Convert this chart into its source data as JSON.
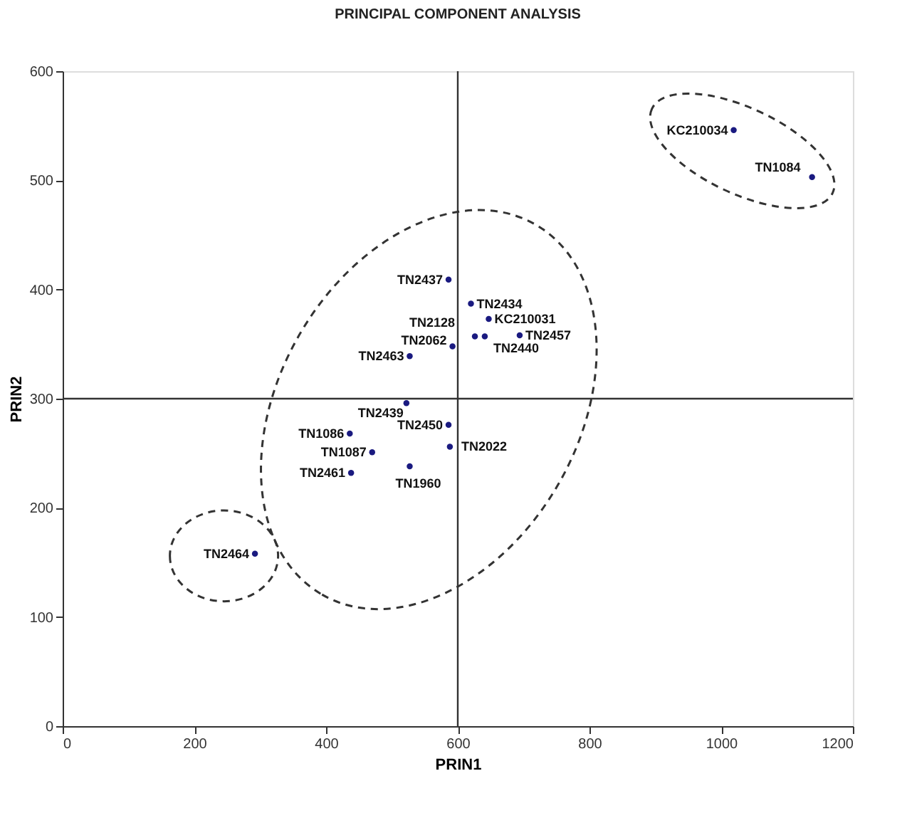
{
  "chart_data": {
    "type": "scatter",
    "title": "PRINCIPAL COMPONENT ANALYSIS",
    "xlabel": "PRIN1",
    "ylabel": "PRIN2",
    "series": [
      {
        "color": "#1a1a80",
        "x": [
          586,
          620,
          647,
          626,
          641,
          694,
          592,
          527,
          522,
          586,
          436,
          588,
          470,
          527,
          438,
          292,
          1019,
          1138
        ],
        "values": [
          409,
          387,
          373,
          357,
          357,
          358,
          348,
          339,
          296,
          276,
          268,
          256,
          251,
          238,
          232,
          158,
          546,
          503
        ]
      }
    ],
    "annotations": [
      {
        "text": "TN2437",
        "x": 586,
        "y": 409
      },
      {
        "text": "TN2434",
        "x": 620,
        "y": 387
      },
      {
        "text": "KC210031",
        "x": 647,
        "y": 373
      },
      {
        "text": "TN2128",
        "x": 626,
        "y": 357
      },
      {
        "text": "TN2440",
        "x": 641,
        "y": 357
      },
      {
        "text": "TN2457",
        "x": 694,
        "y": 358
      },
      {
        "text": "TN2062",
        "x": 592,
        "y": 348
      },
      {
        "text": "TN2463",
        "x": 527,
        "y": 339
      },
      {
        "text": "TN2439",
        "x": 522,
        "y": 296
      },
      {
        "text": "TN2450",
        "x": 586,
        "y": 276
      },
      {
        "text": "TN1086",
        "x": 436,
        "y": 268
      },
      {
        "text": "TN2022",
        "x": 588,
        "y": 256
      },
      {
        "text": "TN1087",
        "x": 470,
        "y": 251
      },
      {
        "text": "TN1960",
        "x": 527,
        "y": 238
      },
      {
        "text": "TN2461",
        "x": 438,
        "y": 232
      },
      {
        "text": "TN2464",
        "x": 292,
        "y": 158
      },
      {
        "text": "KC210034",
        "x": 1019,
        "y": 546
      },
      {
        "text": "TN1084",
        "x": 1138,
        "y": 503
      }
    ],
    "ref_lines": [
      {
        "axis": "x",
        "value": 600
      },
      {
        "axis": "y",
        "value": 300
      }
    ],
    "xlim": [
      0,
      1200
    ],
    "xticks": [
      0,
      200,
      400,
      600,
      800,
      1000,
      1200
    ],
    "ylim": [
      0,
      600
    ],
    "yticks": [
      0,
      100,
      200,
      300,
      400,
      500,
      600
    ],
    "grid": false,
    "marker": "circle"
  }
}
